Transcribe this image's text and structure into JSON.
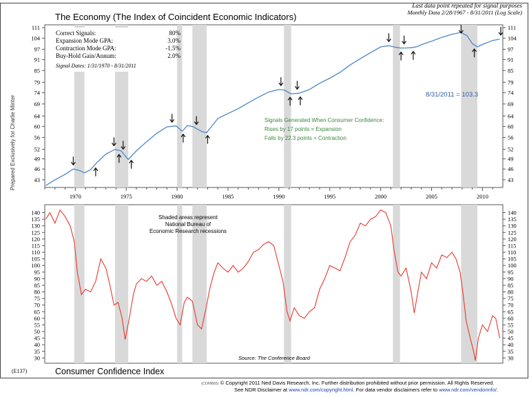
{
  "header": {
    "title": "The Economy (The Index of Coincident Economic Indicators)",
    "note_line1": "Last data point repeated for signal purposes",
    "note_line2": "Monthly Data 2/28/1967 - 8/31/2011 (Log Scale)"
  },
  "side_label": "Prepared Exclusively for Charlie Minter",
  "stats": {
    "rows": [
      {
        "label": "Correct Signals:",
        "value": "80%"
      },
      {
        "label": "Expansion Mode GPA:",
        "value": "3.0%"
      },
      {
        "label": "Contraction Mode GPA:",
        "value": "-1.5%"
      },
      {
        "label": "Buy-Hold Gain/Annum:",
        "value": "2.0%"
      }
    ],
    "signal_dates": "Signal Dates: 1/31/1970 - 8/31/2011"
  },
  "annotations": {
    "last_value": "8/31/2011 = 103.3",
    "signals_title": "Signals Generated When Consumer Confidence:",
    "signals_rise": "Rises by 17 points = Expansion",
    "signals_fall": "Falls by 22.3 points = Contraction",
    "shaded_note": [
      "Shaded areas represent",
      "National Bureau of",
      "Economic Research recessions"
    ],
    "source": "Source: The Conference Board"
  },
  "bottom_title": {
    "code": "(E137)",
    "text": "Consumer Confidence Index"
  },
  "footer": {
    "code": "(COM865)",
    "line1": "© Copyright 2011 Ned Davis Research, Inc.  Further distribution prohibited without prior permission.  All Rights Reserved.",
    "line2_a": "See NDR Disclaimer at ",
    "line2_link1": "www.ndr.com/copyright.html",
    "line2_b": ".  For data vendor disclaimers refer to ",
    "line2_link2": "www.ndr.com/vendorinfo/",
    "line2_c": "."
  },
  "colors": {
    "top_line": "#4a86c8",
    "bottom_line": "#e8372c",
    "recession": "#d9d9d9",
    "annotation_green": "#3a8a3a",
    "annotation_blue": "#2a5db0"
  },
  "chart_data": [
    {
      "type": "line",
      "title": "The Economy (The Index of Coincident Economic Indicators)",
      "scale": "log",
      "xlim": [
        1967,
        2012
      ],
      "ylim": [
        41,
        113
      ],
      "x_ticks": [
        "1970",
        "1975",
        "1980",
        "1985",
        "1990",
        "1995",
        "2000",
        "2005",
        "2010"
      ],
      "y_ticks": [
        "43",
        "46",
        "49",
        "52",
        "56",
        "60",
        "64",
        "69",
        "74",
        "79",
        "85",
        "91",
        "97",
        "104",
        "111"
      ],
      "recessions": [
        [
          1969.9,
          1970.9
        ],
        [
          1973.9,
          1975.2
        ],
        [
          1980.0,
          1980.5
        ],
        [
          1981.5,
          1982.9
        ],
        [
          1990.5,
          1991.2
        ],
        [
          2001.2,
          2001.9
        ],
        [
          2007.9,
          2009.5
        ]
      ],
      "series": [
        {
          "x": [
            1967.1,
            1968,
            1969,
            1969.8,
            1970.5,
            1970.9,
            1971.5,
            1972,
            1973,
            1973.9,
            1974.5,
            1975.2,
            1976,
            1977,
            1978,
            1979,
            1979.9,
            1980.5,
            1981,
            1981.5,
            1982.5,
            1982.9,
            1983.5,
            1984,
            1985,
            1986,
            1987,
            1988,
            1989,
            1990,
            1990.5,
            1991.2,
            1992,
            1993,
            1994,
            1995,
            1996,
            1997,
            1998,
            1999,
            2000,
            2000.8,
            2001.5,
            2001.9,
            2002.5,
            2003,
            2003.5,
            2004,
            2005,
            2006,
            2007,
            2007.9,
            2008.5,
            2009,
            2009.5,
            2010,
            2011,
            2011.7
          ],
          "values": [
            41.5,
            43.0,
            44.5,
            46.0,
            45.5,
            44.9,
            45.8,
            47.5,
            50.5,
            52.0,
            51.5,
            48.8,
            51.5,
            54.5,
            57.5,
            59.8,
            60.2,
            58.2,
            60.3,
            60.0,
            58.0,
            57.7,
            60.5,
            63.0,
            65.0,
            67.0,
            69.5,
            72.0,
            74.3,
            75.5,
            75.3,
            73.5,
            73.8,
            75.5,
            78.5,
            81.0,
            84.0,
            88.0,
            91.5,
            95.0,
            98.5,
            99.2,
            98.2,
            97.8,
            97.8,
            98.0,
            98.5,
            99.8,
            102.0,
            104.5,
            106.5,
            107.8,
            105.5,
            100.5,
            98.5,
            100.0,
            102.5,
            103.3
          ]
        }
      ],
      "signals": [
        {
          "x": 1969.8,
          "type": "contraction"
        },
        {
          "x": 1972.0,
          "type": "expansion"
        },
        {
          "x": 1973.8,
          "type": "contraction"
        },
        {
          "x": 1974.3,
          "type": "expansion"
        },
        {
          "x": 1974.7,
          "type": "contraction"
        },
        {
          "x": 1975.5,
          "type": "expansion"
        },
        {
          "x": 1979.5,
          "type": "contraction"
        },
        {
          "x": 1980.6,
          "type": "expansion"
        },
        {
          "x": 1981.9,
          "type": "contraction"
        },
        {
          "x": 1983.0,
          "type": "expansion"
        },
        {
          "x": 1990.2,
          "type": "contraction"
        },
        {
          "x": 1991.1,
          "type": "expansion"
        },
        {
          "x": 1991.8,
          "type": "contraction"
        },
        {
          "x": 1992.1,
          "type": "expansion"
        },
        {
          "x": 2000.8,
          "type": "contraction"
        },
        {
          "x": 2002.0,
          "type": "expansion"
        },
        {
          "x": 2002.3,
          "type": "contraction"
        },
        {
          "x": 2003.2,
          "type": "expansion"
        },
        {
          "x": 2007.9,
          "type": "contraction"
        },
        {
          "x": 2009.2,
          "type": "expansion"
        },
        {
          "x": 2011.8,
          "type": "contraction"
        }
      ]
    },
    {
      "type": "line",
      "title": "Consumer Confidence Index",
      "xlim": [
        1967,
        2012
      ],
      "ylim": [
        26,
        146
      ],
      "y_ticks": [
        "30",
        "35",
        "40",
        "45",
        "50",
        "55",
        "60",
        "65",
        "70",
        "75",
        "80",
        "85",
        "90",
        "95",
        "100",
        "105",
        "110",
        "115",
        "120",
        "125",
        "130",
        "135",
        "140"
      ],
      "recessions": [
        [
          1969.9,
          1970.9
        ],
        [
          1973.9,
          1975.2
        ],
        [
          1980.0,
          1980.5
        ],
        [
          1981.5,
          1982.9
        ],
        [
          1990.5,
          1991.2
        ],
        [
          2001.2,
          2001.9
        ],
        [
          2007.9,
          2009.5
        ]
      ],
      "series": [
        {
          "x": [
            1967.1,
            1967.5,
            1968,
            1968.5,
            1969,
            1969.5,
            1969.9,
            1970.2,
            1970.6,
            1971,
            1971.5,
            1972,
            1972.5,
            1973,
            1973.4,
            1973.8,
            1974.2,
            1974.6,
            1974.9,
            1975.3,
            1975.7,
            1976,
            1976.5,
            1977,
            1977.5,
            1978,
            1978.5,
            1979,
            1979.5,
            1979.9,
            1980.3,
            1980.7,
            1981,
            1981.5,
            1982,
            1982.4,
            1982.8,
            1983.2,
            1983.6,
            1984,
            1984.5,
            1985,
            1985.5,
            1986,
            1986.5,
            1987,
            1987.5,
            1988,
            1988.5,
            1989,
            1989.5,
            1990,
            1990.4,
            1990.8,
            1991.1,
            1991.5,
            1992,
            1992.5,
            1993,
            1993.5,
            1994,
            1994.5,
            1995,
            1995.5,
            1996,
            1996.5,
            1997,
            1997.5,
            1998,
            1998.5,
            1999,
            1999.5,
            2000,
            2000.5,
            2001,
            2001.3,
            2001.7,
            2002,
            2002.5,
            2003,
            2003.3,
            2003.7,
            2004,
            2004.5,
            2005,
            2005.5,
            2006,
            2006.5,
            2007,
            2007.4,
            2007.8,
            2008.1,
            2008.4,
            2008.8,
            2009.1,
            2009.3,
            2009.6,
            2010,
            2010.5,
            2011,
            2011.3,
            2011.7
          ],
          "values": [
            135,
            140,
            132,
            142,
            137,
            130,
            118,
            95,
            78,
            82,
            80,
            88,
            105,
            98,
            85,
            70,
            72,
            60,
            44,
            60,
            78,
            86,
            90,
            88,
            92,
            85,
            88,
            80,
            70,
            60,
            55,
            72,
            76,
            73,
            55,
            52,
            66,
            82,
            94,
            102,
            98,
            95,
            100,
            95,
            98,
            103,
            110,
            112,
            116,
            118,
            115,
            100,
            88,
            65,
            58,
            68,
            62,
            60,
            65,
            68,
            82,
            90,
            100,
            98,
            96,
            106,
            118,
            123,
            132,
            130,
            135,
            137,
            142,
            140,
            130,
            112,
            95,
            92,
            98,
            80,
            64,
            82,
            95,
            90,
            102,
            98,
            108,
            106,
            110,
            105,
            95,
            78,
            58,
            45,
            36,
            28,
            45,
            55,
            50,
            62,
            60,
            45
          ]
        }
      ]
    }
  ]
}
